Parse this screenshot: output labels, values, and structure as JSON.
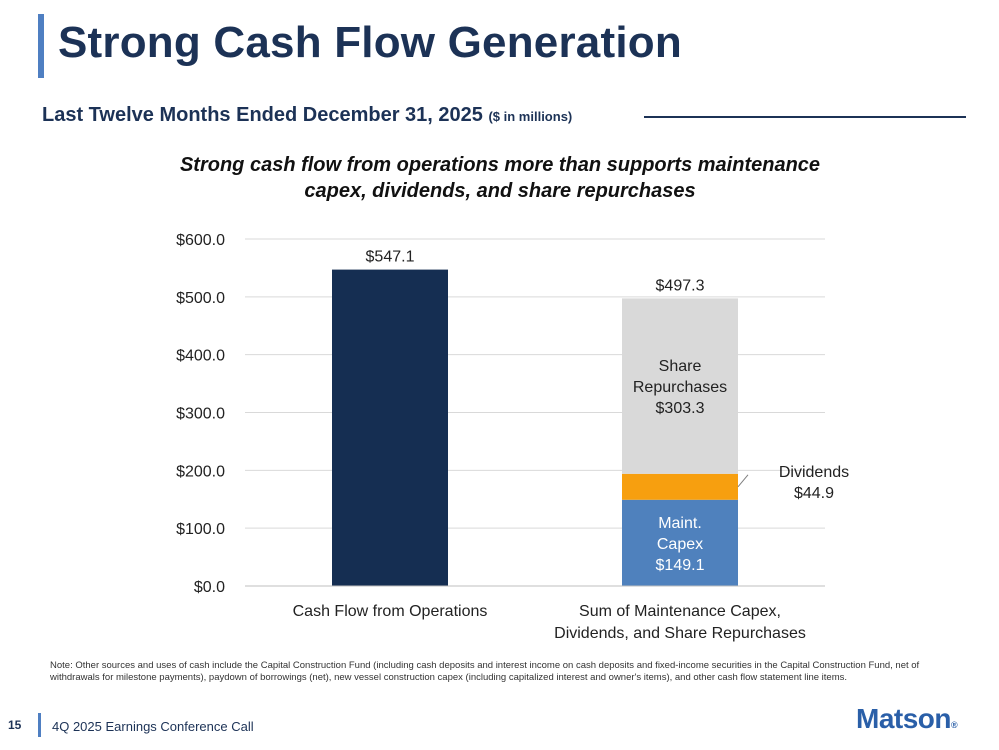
{
  "slide": {
    "title": "Strong Cash Flow Generation",
    "subtitle": "Last Twelve Months Ended December 31, 2025",
    "subtitle_units": "($ in millions)",
    "headline_line1": "Strong cash flow from operations more than supports maintenance",
    "headline_line2": "capex, dividends, and share repurchases",
    "note": "Note: Other sources and uses of cash include the Capital Construction Fund (including cash deposits and interest income on cash deposits and fixed-income securities in the Capital Construction Fund, net of withdrawals for milestone payments), paydown of borrowings (net), new vessel construction capex (including capitalized interest and owner's items), and other cash flow statement line items.",
    "page_number": "15",
    "footer": "4Q 2025 Earnings Conference Call",
    "logo": "Matson",
    "logo_mark": "®"
  },
  "colors": {
    "navy": "#152e52",
    "blue": "#4f81bd",
    "orange": "#f79f0f",
    "gray": "#d9d9d9",
    "grid": "#d9d9d9",
    "axis_text": "#222222"
  },
  "chart_data": {
    "type": "bar",
    "stacked": true,
    "ylim": [
      0,
      600
    ],
    "y_ticks": [
      0,
      100,
      200,
      300,
      400,
      500,
      600
    ],
    "y_tick_labels": [
      "$0.0",
      "$100.0",
      "$200.0",
      "$300.0",
      "$400.0",
      "$500.0",
      "$600.0"
    ],
    "grid": true,
    "categories": [
      "Cash Flow from Operations",
      "Sum of Maintenance Capex, Dividends, and Share Repurchases"
    ],
    "category_labels": [
      [
        "Cash Flow from Operations"
      ],
      [
        "Sum of Maintenance Capex,",
        "Dividends, and Share Repurchases"
      ]
    ],
    "totals": [
      547.1,
      497.3
    ],
    "total_labels": [
      "$547.1",
      "$497.3"
    ],
    "series": [
      {
        "name": "Cash Flow from Operations",
        "values": [
          547.1,
          0
        ],
        "color": "#152e52",
        "label_lines": []
      },
      {
        "name": "Maint. Capex",
        "values": [
          0,
          149.1
        ],
        "color": "#4f81bd",
        "label_lines": [
          "Maint.",
          "Capex",
          "$149.1"
        ]
      },
      {
        "name": "Dividends",
        "values": [
          0,
          44.9
        ],
        "color": "#f79f0f",
        "label_lines": [
          "Dividends",
          "$44.9"
        ]
      },
      {
        "name": "Share Repurchases",
        "values": [
          0,
          303.3
        ],
        "color": "#d9d9d9",
        "label_lines": [
          "Share",
          "Repurchases",
          "$303.3"
        ]
      }
    ]
  }
}
